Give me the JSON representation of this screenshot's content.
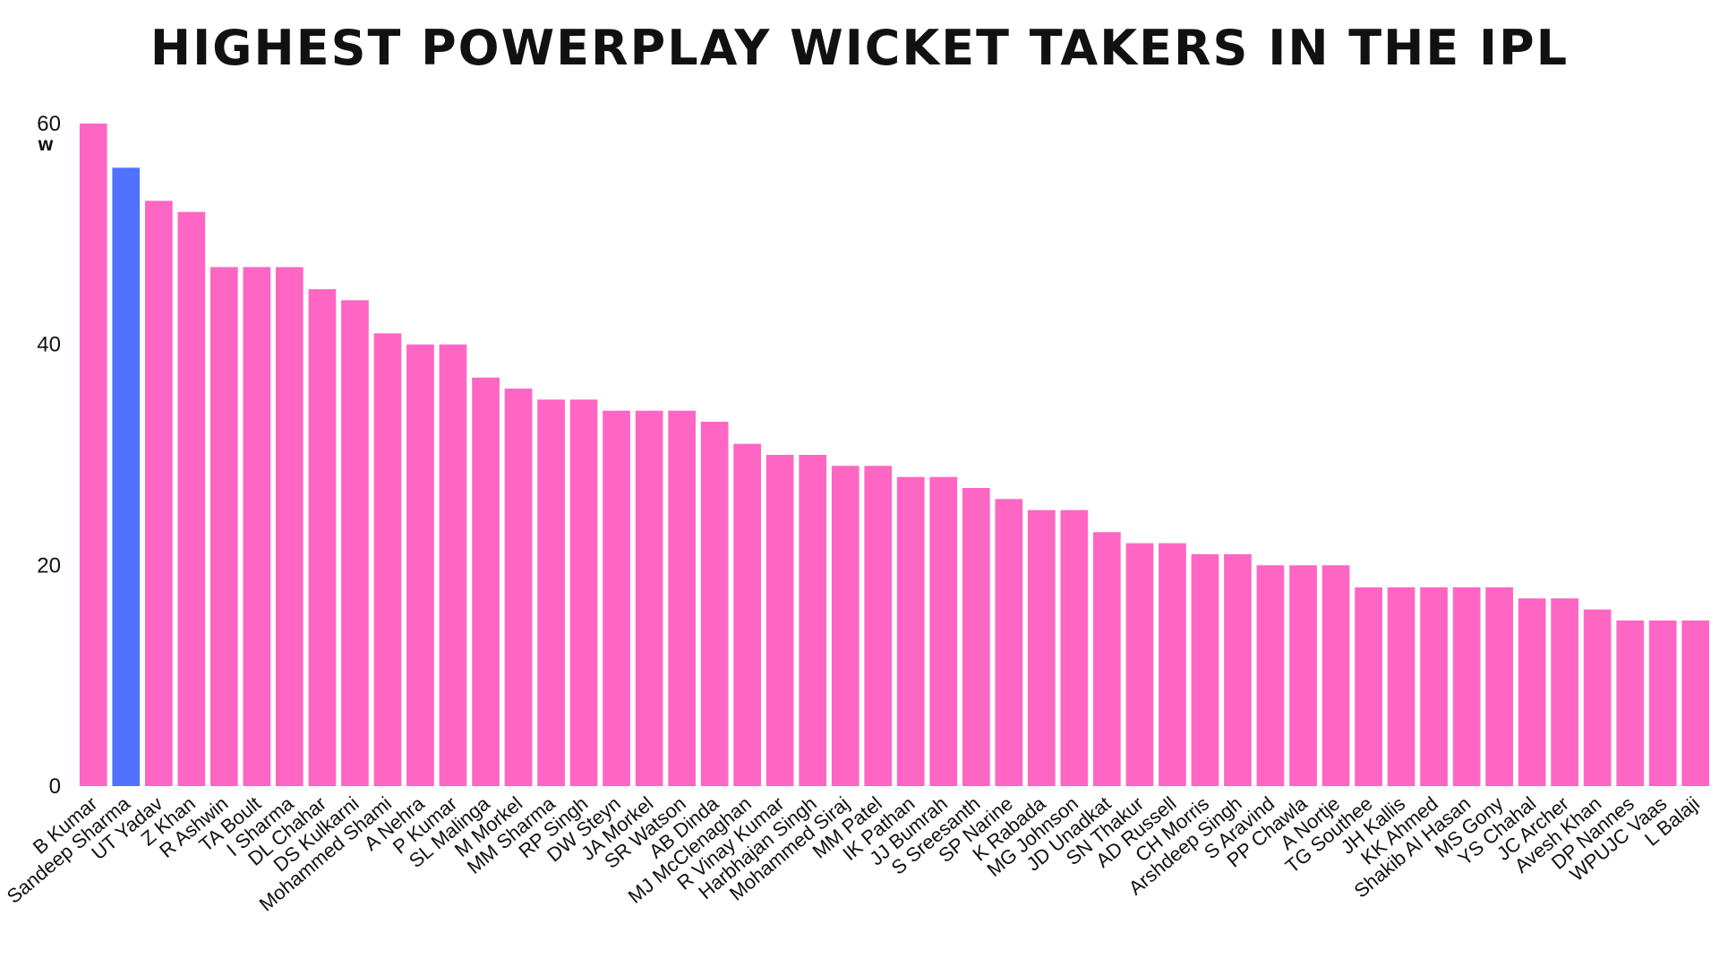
{
  "chart_data": {
    "type": "bar",
    "title": "HIGHEST POWERPLAY WICKET TAKERS IN THE IPL",
    "ylabel": "",
    "y_unit": "W",
    "xlabel": "",
    "ylim": [
      0,
      60
    ],
    "yticks": [
      0,
      20,
      40,
      60
    ],
    "grid": false,
    "colors": {
      "default": "#ff66c4",
      "highlight": "#5271ff"
    },
    "highlight_category": "Sandeep Sharma",
    "categories": [
      "B Kumar",
      "Sandeep Sharma",
      "UT Yadav",
      "Z Khan",
      "R Ashwin",
      "TA Boult",
      "I Sharma",
      "DL Chahar",
      "DS Kulkarni",
      "Mohammed Shami",
      "A Nehra",
      "P Kumar",
      "SL Malinga",
      "M Morkel",
      "MM Sharma",
      "RP Singh",
      "DW Steyn",
      "JA Morkel",
      "SR Watson",
      "AB Dinda",
      "MJ McClenaghan",
      "R Vinay Kumar",
      "Harbhajan Singh",
      "Mohammed Siraj",
      "MM Patel",
      "IK Pathan",
      "JJ Bumrah",
      "S Sreesanth",
      "SP Narine",
      "K Rabada",
      "MG Johnson",
      "JD Unadkat",
      "SN Thakur",
      "AD Russell",
      "CH Morris",
      "Arshdeep Singh",
      "S Aravind",
      "PP Chawla",
      "A Nortje",
      "TG Southee",
      "JH Kallis",
      "KK Ahmed",
      "Shakib Al Hasan",
      "MS Gony",
      "YS Chahal",
      "JC Archer",
      "Avesh Khan",
      "DP Nannes",
      "WPUJC Vaas",
      "L Balaji"
    ],
    "values": [
      60,
      56,
      53,
      52,
      47,
      47,
      47,
      45,
      44,
      41,
      40,
      40,
      37,
      36,
      35,
      35,
      34,
      34,
      34,
      33,
      31,
      30,
      30,
      29,
      29,
      28,
      28,
      27,
      26,
      25,
      25,
      23,
      22,
      22,
      21,
      21,
      20,
      20,
      20,
      18,
      18,
      18,
      18,
      18,
      17,
      17,
      16,
      15,
      15,
      15
    ]
  }
}
